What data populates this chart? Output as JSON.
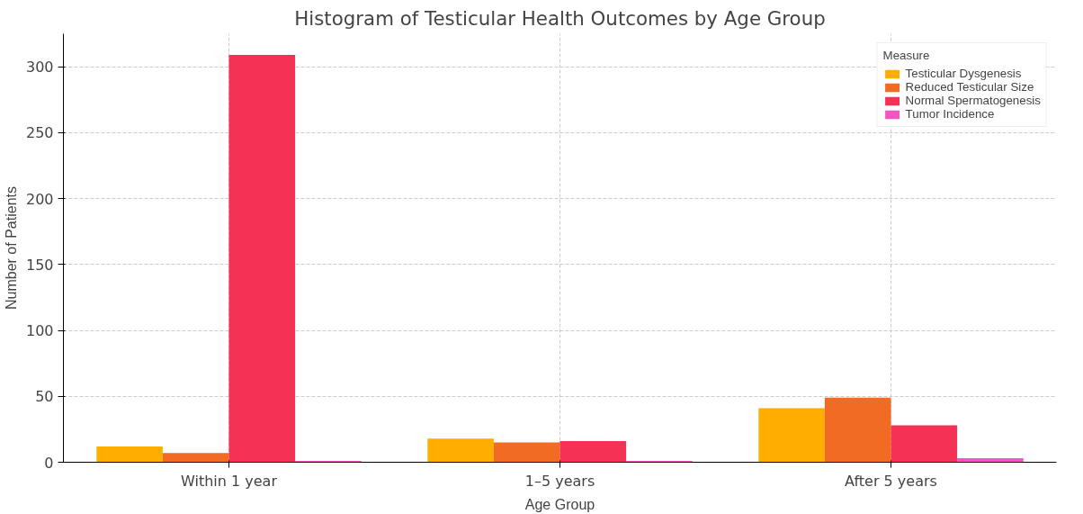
{
  "chart_data": {
    "type": "bar",
    "title": "Histogram of Testicular Health Outcomes by Age Group",
    "xlabel": "Age Group",
    "ylabel": "Number of Patients",
    "legend_title": "Measure",
    "categories": [
      "Within 1 year",
      "1–5 years",
      "After 5 years"
    ],
    "series": [
      {
        "name": "Testicular Dysgenesis",
        "color": "#ffae00",
        "values": [
          12,
          18,
          41
        ]
      },
      {
        "name": "Reduced Testicular Size",
        "color": "#f26b22",
        "values": [
          7,
          15,
          49
        ]
      },
      {
        "name": "Normal Spermatogenesis",
        "color": "#f53255",
        "values": [
          309,
          16,
          28
        ]
      },
      {
        "name": "Tumor Incidence",
        "color": "#f655c0",
        "values": [
          1,
          1,
          3
        ]
      }
    ],
    "ylim": [
      0,
      325
    ],
    "yticks": [
      0,
      50,
      100,
      150,
      200,
      250,
      300
    ],
    "grid": true,
    "legend": "top right"
  }
}
